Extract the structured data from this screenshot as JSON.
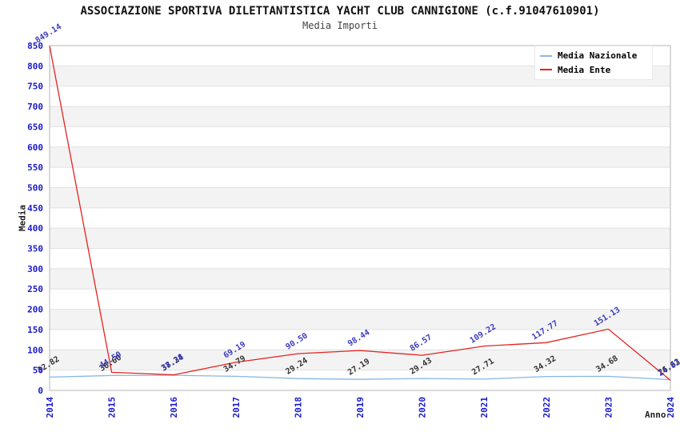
{
  "chart_data": {
    "type": "line",
    "title": "ASSOCIAZIONE SPORTIVA DILETTANTISTICA YACHT CLUB CANNIGIONE (c.f.91047610901)",
    "subtitle": "Media Importi",
    "xlabel": "Anno",
    "ylabel": "Media",
    "x": [
      "2014",
      "2015",
      "2016",
      "2017",
      "2018",
      "2019",
      "2020",
      "2021",
      "2022",
      "2023",
      "2024"
    ],
    "ylim": [
      0,
      850
    ],
    "ytick_step": 50,
    "grid": true,
    "band_fill": "alternating horizontal stripes every 50 units",
    "legend_position": "top-right",
    "series": [
      {
        "name": "Media Nazionale",
        "color": "#85b7e8",
        "label_color": "#333333",
        "values": [
          32.82,
          36.6,
          37.24,
          34.79,
          29.24,
          27.19,
          29.43,
          27.71,
          34.32,
          34.68,
          26.63
        ]
      },
      {
        "name": "Media Ente",
        "color": "#e42320",
        "label_color": "#3b3bc0",
        "values": [
          849.14,
          44.5,
          38.38,
          69.19,
          90.5,
          98.44,
          86.57,
          109.22,
          117.77,
          151.13,
          24.82
        ]
      }
    ],
    "colors": {
      "tick_label": "#1a1acd",
      "stripe": "#f3f3f3",
      "gridline": "#e2e2e2",
      "plot_border": "#b5b5b5",
      "background": "#ffffff"
    }
  }
}
